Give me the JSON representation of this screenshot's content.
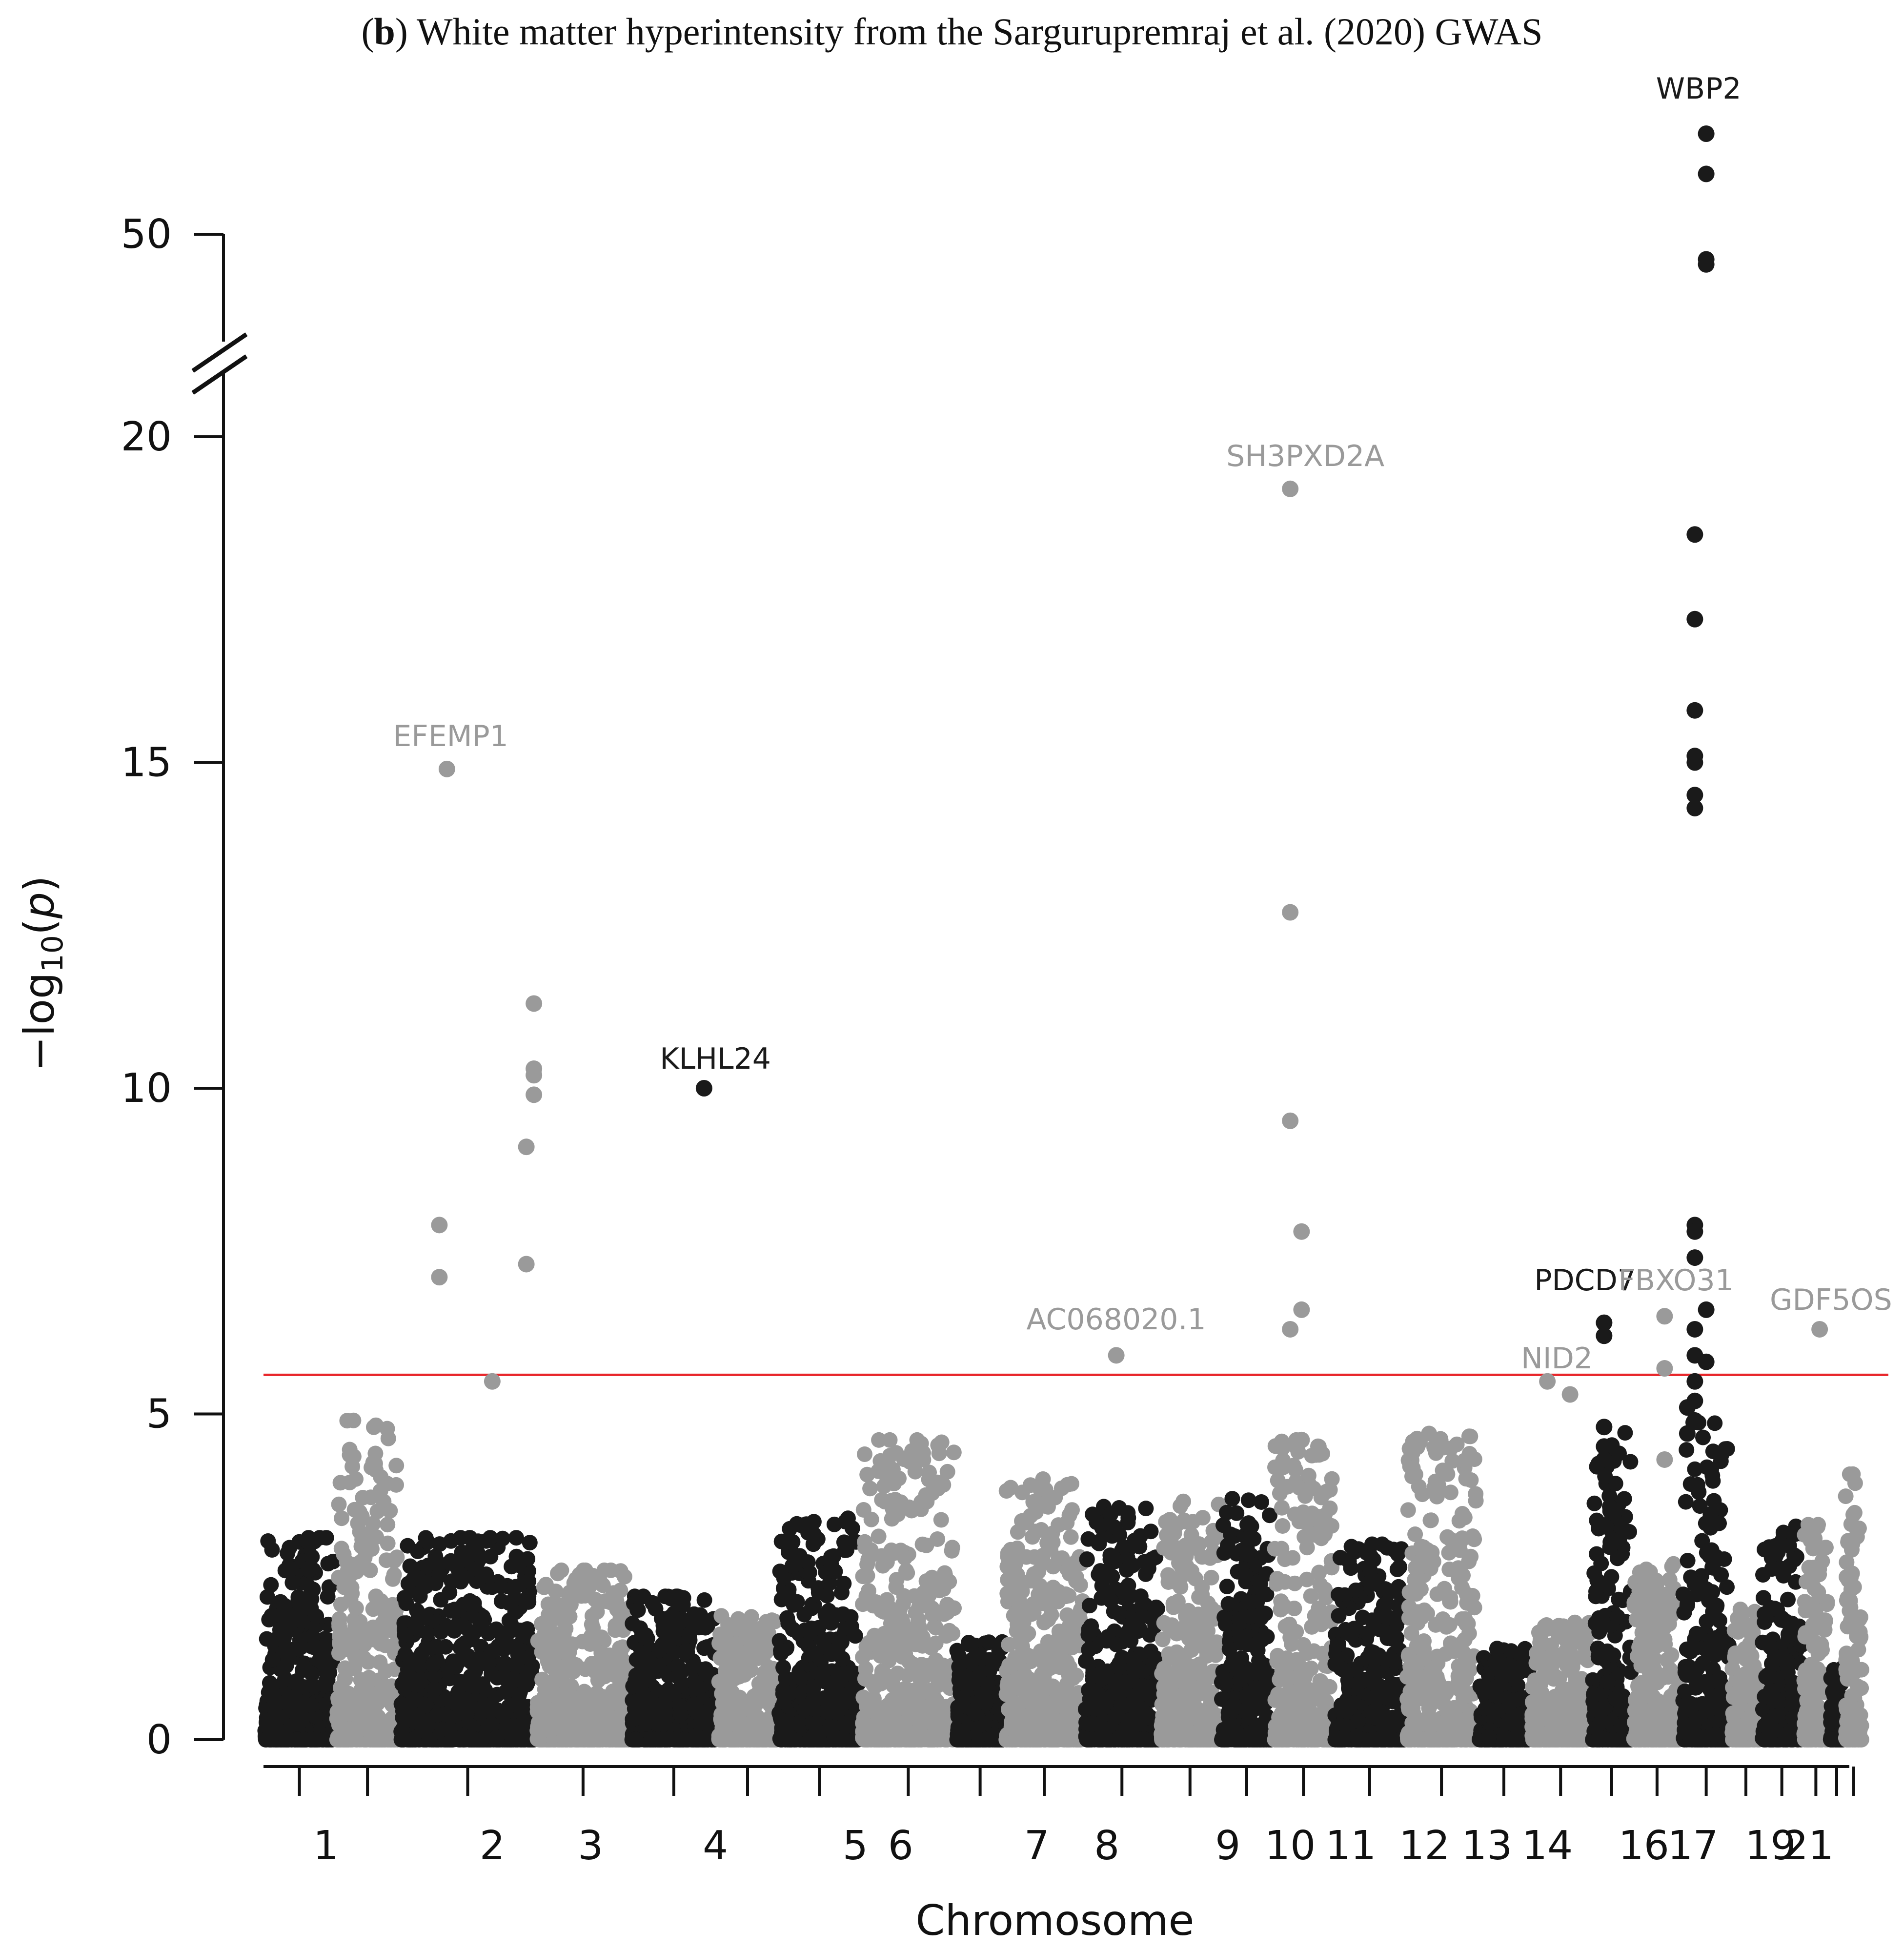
{
  "title": {
    "prefix": "(",
    "letter": "b",
    "text": ") White matter hyperintensity from the Sargurupremraj et al. (2020) GWAS"
  },
  "chart_data": {
    "type": "scatter",
    "subtype": "manhattan",
    "xlabel": "Chromosome",
    "ylabel": "-log10(p)",
    "y_axis_break": {
      "lower": [
        0,
        22
      ],
      "upper": [
        47,
        55
      ]
    },
    "yticks": [
      0,
      5,
      10,
      15,
      20,
      50
    ],
    "significance_threshold": 5.6,
    "threshold_color": "#e8262b",
    "colors": {
      "odd": "#1a1a1a",
      "even": "#9a9a9a"
    },
    "chromosomes": [
      {
        "label": "1",
        "start": 0,
        "end": 19,
        "max": 3.1
      },
      {
        "label": "",
        "start": 19,
        "end": 36,
        "max": 4.9
      },
      {
        "label": "2",
        "start": 36,
        "end": 72,
        "max": 3.1
      },
      {
        "label": "3",
        "start": 72,
        "end": 97,
        "max": 2.6
      },
      {
        "label": "4",
        "start": 97,
        "end": 120,
        "max": 2.2
      },
      {
        "label": "",
        "start": 120,
        "end": 136,
        "max": 1.9
      },
      {
        "label": "5",
        "start": 136,
        "end": 158,
        "max": 3.4
      },
      {
        "label": "6",
        "start": 158,
        "end": 183,
        "max": 4.6
      },
      {
        "label": "",
        "start": 183,
        "end": 196,
        "max": 1.5
      },
      {
        "label": "7",
        "start": 196,
        "end": 217,
        "max": 4.0
      },
      {
        "label": "8",
        "start": 217,
        "end": 237,
        "max": 3.6
      },
      {
        "label": "",
        "start": 237,
        "end": 253,
        "max": 3.7
      },
      {
        "label": "9",
        "start": 253,
        "end": 267,
        "max": 3.7
      },
      {
        "label": "10",
        "start": 267,
        "end": 283,
        "max": 4.6
      },
      {
        "label": "11",
        "start": 283,
        "end": 302,
        "max": 3.0
      },
      {
        "label": "12",
        "start": 302,
        "end": 321,
        "max": 4.7
      },
      {
        "label": "13",
        "start": 321,
        "end": 335,
        "max": 1.4
      },
      {
        "label": "14",
        "start": 335,
        "end": 351,
        "max": 1.8
      },
      {
        "label": "",
        "start": 351,
        "end": 362,
        "max": 4.8
      },
      {
        "label": "16",
        "start": 362,
        "end": 375,
        "max": 2.7
      },
      {
        "label": "17",
        "start": 375,
        "end": 388,
        "max": 5.0
      },
      {
        "label": "",
        "start": 388,
        "end": 396,
        "max": 2.0
      },
      {
        "label": "19",
        "start": 396,
        "end": 407,
        "max": 3.3
      },
      {
        "label": "",
        "start": 407,
        "end": 414,
        "max": 3.3
      },
      {
        "label": "21",
        "start": 414,
        "end": 418,
        "max": 1.1
      },
      {
        "label": "",
        "start": 418,
        "end": 423,
        "max": 4.1
      }
    ],
    "x_label_positions": [
      {
        "label": "1",
        "pos": 16.5
      },
      {
        "label": "2",
        "pos": 60.5
      },
      {
        "label": "3",
        "pos": 86.5
      },
      {
        "label": "4",
        "pos": 119.5
      },
      {
        "label": "5",
        "pos": 156.5
      },
      {
        "label": "6",
        "pos": 168.5
      },
      {
        "label": "7",
        "pos": 204.5
      },
      {
        "label": "8",
        "pos": 223
      },
      {
        "label": "9",
        "pos": 255
      },
      {
        "label": "10",
        "pos": 271.5
      },
      {
        "label": "11",
        "pos": 287.5
      },
      {
        "label": "12",
        "pos": 307
      },
      {
        "label": "13",
        "pos": 323.5
      },
      {
        "label": "14",
        "pos": 339.5
      },
      {
        "label": "16",
        "pos": 365
      },
      {
        "label": "17",
        "pos": 378
      },
      {
        "label": "19",
        "pos": 398.5
      },
      {
        "label": "21",
        "pos": 408.5
      }
    ],
    "points": [
      {
        "x": 48.5,
        "y": 14.9,
        "c": "even"
      },
      {
        "x": 46.5,
        "y": 7.9,
        "c": "even"
      },
      {
        "x": 46.5,
        "y": 7.1,
        "c": "even"
      },
      {
        "x": 60.5,
        "y": 5.5,
        "c": "even"
      },
      {
        "x": 71.5,
        "y": 11.3,
        "c": "even"
      },
      {
        "x": 71.5,
        "y": 10.3,
        "c": "even"
      },
      {
        "x": 71.5,
        "y": 10.2,
        "c": "even"
      },
      {
        "x": 71.5,
        "y": 9.9,
        "c": "even"
      },
      {
        "x": 69.5,
        "y": 9.1,
        "c": "even"
      },
      {
        "x": 69.5,
        "y": 7.3,
        "c": "even"
      },
      {
        "x": 116.5,
        "y": 10.0,
        "c": "odd"
      },
      {
        "x": 225.5,
        "y": 5.9,
        "c": "even"
      },
      {
        "x": 271.5,
        "y": 19.2,
        "c": "even"
      },
      {
        "x": 271.5,
        "y": 12.7,
        "c": "even"
      },
      {
        "x": 271.5,
        "y": 9.5,
        "c": "even"
      },
      {
        "x": 274.5,
        "y": 7.8,
        "c": "even"
      },
      {
        "x": 274.5,
        "y": 6.6,
        "c": "even"
      },
      {
        "x": 271.5,
        "y": 6.3,
        "c": "even"
      },
      {
        "x": 274.5,
        "y": 4.6,
        "c": "even"
      },
      {
        "x": 339.5,
        "y": 5.5,
        "c": "even"
      },
      {
        "x": 345.5,
        "y": 5.3,
        "c": "even"
      },
      {
        "x": 354.5,
        "y": 6.4,
        "c": "odd"
      },
      {
        "x": 354.5,
        "y": 6.2,
        "c": "odd"
      },
      {
        "x": 354.5,
        "y": 4.8,
        "c": "odd"
      },
      {
        "x": 354.5,
        "y": 4.5,
        "c": "odd"
      },
      {
        "x": 354.5,
        "y": 4.3,
        "c": "odd"
      },
      {
        "x": 370.5,
        "y": 6.5,
        "c": "even"
      },
      {
        "x": 370.5,
        "y": 5.7,
        "c": "even"
      },
      {
        "x": 370.5,
        "y": 4.3,
        "c": "even"
      },
      {
        "x": 378.5,
        "y": 18.5,
        "c": "odd"
      },
      {
        "x": 378.5,
        "y": 17.2,
        "c": "odd"
      },
      {
        "x": 378.5,
        "y": 15.8,
        "c": "odd"
      },
      {
        "x": 378.5,
        "y": 15.1,
        "c": "odd"
      },
      {
        "x": 378.5,
        "y": 15.0,
        "c": "odd"
      },
      {
        "x": 378.5,
        "y": 14.5,
        "c": "odd"
      },
      {
        "x": 378.5,
        "y": 14.3,
        "c": "odd"
      },
      {
        "x": 378.5,
        "y": 7.9,
        "c": "odd"
      },
      {
        "x": 378.5,
        "y": 7.8,
        "c": "odd"
      },
      {
        "x": 378.5,
        "y": 7.4,
        "c": "odd"
      },
      {
        "x": 381.5,
        "y": 6.6,
        "c": "odd"
      },
      {
        "x": 378.5,
        "y": 6.3,
        "c": "odd"
      },
      {
        "x": 378.5,
        "y": 5.9,
        "c": "odd"
      },
      {
        "x": 381.5,
        "y": 5.8,
        "c": "odd"
      },
      {
        "x": 378.5,
        "y": 5.5,
        "c": "odd"
      },
      {
        "x": 378.5,
        "y": 5.2,
        "c": "odd"
      },
      {
        "x": 376.5,
        "y": 5.1,
        "c": "odd"
      },
      {
        "x": 378.5,
        "y": 4.9,
        "c": "odd"
      },
      {
        "x": 376.5,
        "y": 4.7,
        "c": "odd"
      },
      {
        "x": 381.5,
        "y": 54.0,
        "c": "odd"
      },
      {
        "x": 381.5,
        "y": 52.4,
        "c": "odd"
      },
      {
        "x": 381.5,
        "y": 49.0,
        "c": "odd"
      },
      {
        "x": 381.5,
        "y": 48.8,
        "c": "odd"
      },
      {
        "x": 411.5,
        "y": 6.3,
        "c": "even"
      }
    ],
    "annotations": [
      {
        "text": "WBP2",
        "x": 379.5,
        "y": 55.4,
        "c": "odd",
        "anchor": "middle"
      },
      {
        "text": "SH3PXD2A",
        "x": 275.5,
        "y": 19.55,
        "c": "even",
        "anchor": "middle"
      },
      {
        "text": "EFEMP1",
        "x": 49.5,
        "y": 15.25,
        "c": "even",
        "anchor": "middle"
      },
      {
        "text": "KLHL24",
        "x": 119.5,
        "y": 10.3,
        "c": "odd",
        "anchor": "middle"
      },
      {
        "text": "AC068020.1",
        "x": 225.5,
        "y": 6.3,
        "c": "even",
        "anchor": "middle"
      },
      {
        "text": "PDCD7",
        "x": 349.5,
        "y": 6.9,
        "c": "odd",
        "anchor": "middle"
      },
      {
        "text": "FBXO31",
        "x": 373.5,
        "y": 6.9,
        "c": "even",
        "anchor": "middle"
      },
      {
        "text": "NID2",
        "x": 342,
        "y": 5.7,
        "c": "even",
        "anchor": "middle"
      },
      {
        "text": "GDF5OS",
        "x": 414.5,
        "y": 6.6,
        "c": "even",
        "anchor": "middle"
      }
    ]
  }
}
